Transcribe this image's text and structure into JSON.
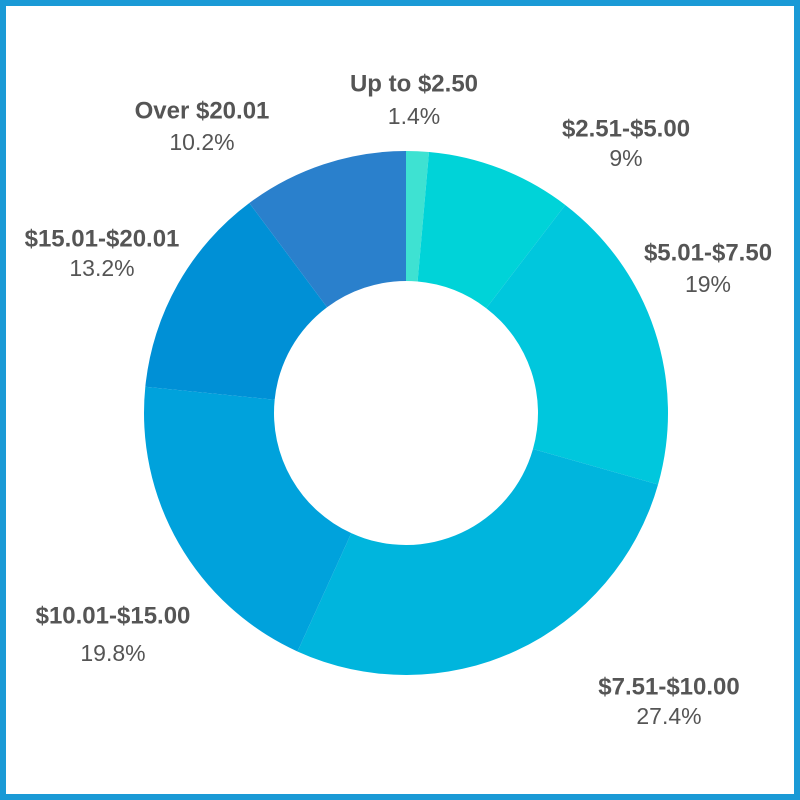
{
  "chart_data": {
    "type": "donut",
    "categories": [
      "Up to $2.50",
      "$2.51-$5.00",
      "$5.01-$7.50",
      "$7.51-$10.00",
      "$10.01-$15.00",
      "$15.01-$20.01",
      "Over $20.01"
    ],
    "values": [
      1.4,
      9,
      19,
      27.4,
      19.8,
      13.2,
      10.2
    ],
    "value_labels": [
      "1.4%",
      "9%",
      "19%",
      "27.4%",
      "19.8%",
      "13.2%",
      "10.2%"
    ],
    "colors": [
      "#3ee2d2",
      "#00d3d8",
      "#00c7dd",
      "#00b5dd",
      "#00a2dc",
      "#0090d6",
      "#2a80cc"
    ]
  }
}
